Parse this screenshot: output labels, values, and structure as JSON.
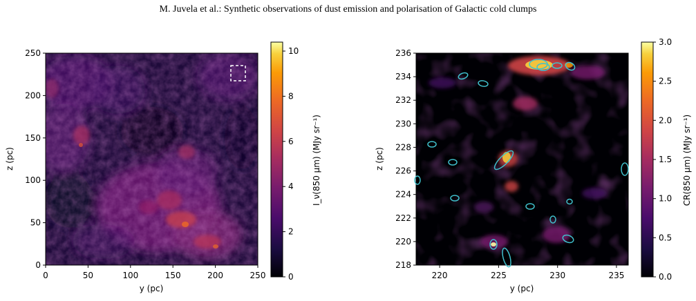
{
  "header": {
    "running_title": "M. Juvela et al.: Synthetic observations of dust emission and polarisation of Galactic cold clumps"
  },
  "chart_data": [
    {
      "type": "heatmap",
      "colormap": "inferno",
      "xlabel": "y (pc)",
      "ylabel": "z (pc)",
      "xlim": [
        0,
        250
      ],
      "ylim": [
        0,
        250
      ],
      "xticks": [
        "0",
        "50",
        "100",
        "150",
        "200",
        "250"
      ],
      "yticks": [
        "0",
        "50",
        "100",
        "150",
        "200",
        "250"
      ],
      "colorbar": {
        "label": "I_ν(850 μm) (MJy sr⁻¹)",
        "range": [
          0,
          10.4
        ],
        "ticks": [
          "0",
          "2",
          "4",
          "6",
          "8",
          "10"
        ]
      },
      "annotations": [
        {
          "type": "dashed-box",
          "y_range": [
            219,
            236
          ],
          "z_range": [
            218,
            236
          ],
          "color": "#ffffff"
        }
      ]
    },
    {
      "type": "heatmap",
      "colormap": "inferno",
      "xlabel": "y (pc)",
      "ylabel": "z (pc)",
      "xlim": [
        218,
        236
      ],
      "ylim": [
        218,
        236
      ],
      "xticks": [
        "220",
        "225",
        "230",
        "235"
      ],
      "yticks": [
        "218",
        "220",
        "222",
        "224",
        "226",
        "228",
        "230",
        "232",
        "234",
        "236"
      ],
      "colorbar": {
        "label": "CR(850 μm) (MJy sr⁻¹)",
        "range": [
          0,
          3.0
        ],
        "ticks": [
          "0.0",
          "0.5",
          "1.0",
          "1.5",
          "2.0",
          "2.5",
          "3.0"
        ]
      },
      "ellipse_color": "#40c0cc",
      "clumps": [
        {
          "y": 222.1,
          "z": 234.2
        },
        {
          "y": 224.3,
          "z": 233.4
        },
        {
          "y": 219.4,
          "z": 228.3
        },
        {
          "y": 221.0,
          "z": 226.8
        },
        {
          "y": 225.4,
          "z": 227.0
        },
        {
          "y": 218.1,
          "z": 225.2
        },
        {
          "y": 235.8,
          "z": 226.2
        },
        {
          "y": 219.6,
          "z": 223.7
        },
        {
          "y": 227.6,
          "z": 223.0
        },
        {
          "y": 230.6,
          "z": 223.4
        },
        {
          "y": 229.7,
          "z": 221.8
        },
        {
          "y": 224.5,
          "z": 221.4
        },
        {
          "y": 230.9,
          "z": 220.2
        },
        {
          "y": 225.8,
          "z": 218.5
        },
        {
          "y": 228.3,
          "z": 235.0
        },
        {
          "y": 229.0,
          "z": 234.8
        },
        {
          "y": 230.2,
          "z": 235.1
        },
        {
          "y": 231.0,
          "z": 234.8
        }
      ]
    }
  ]
}
